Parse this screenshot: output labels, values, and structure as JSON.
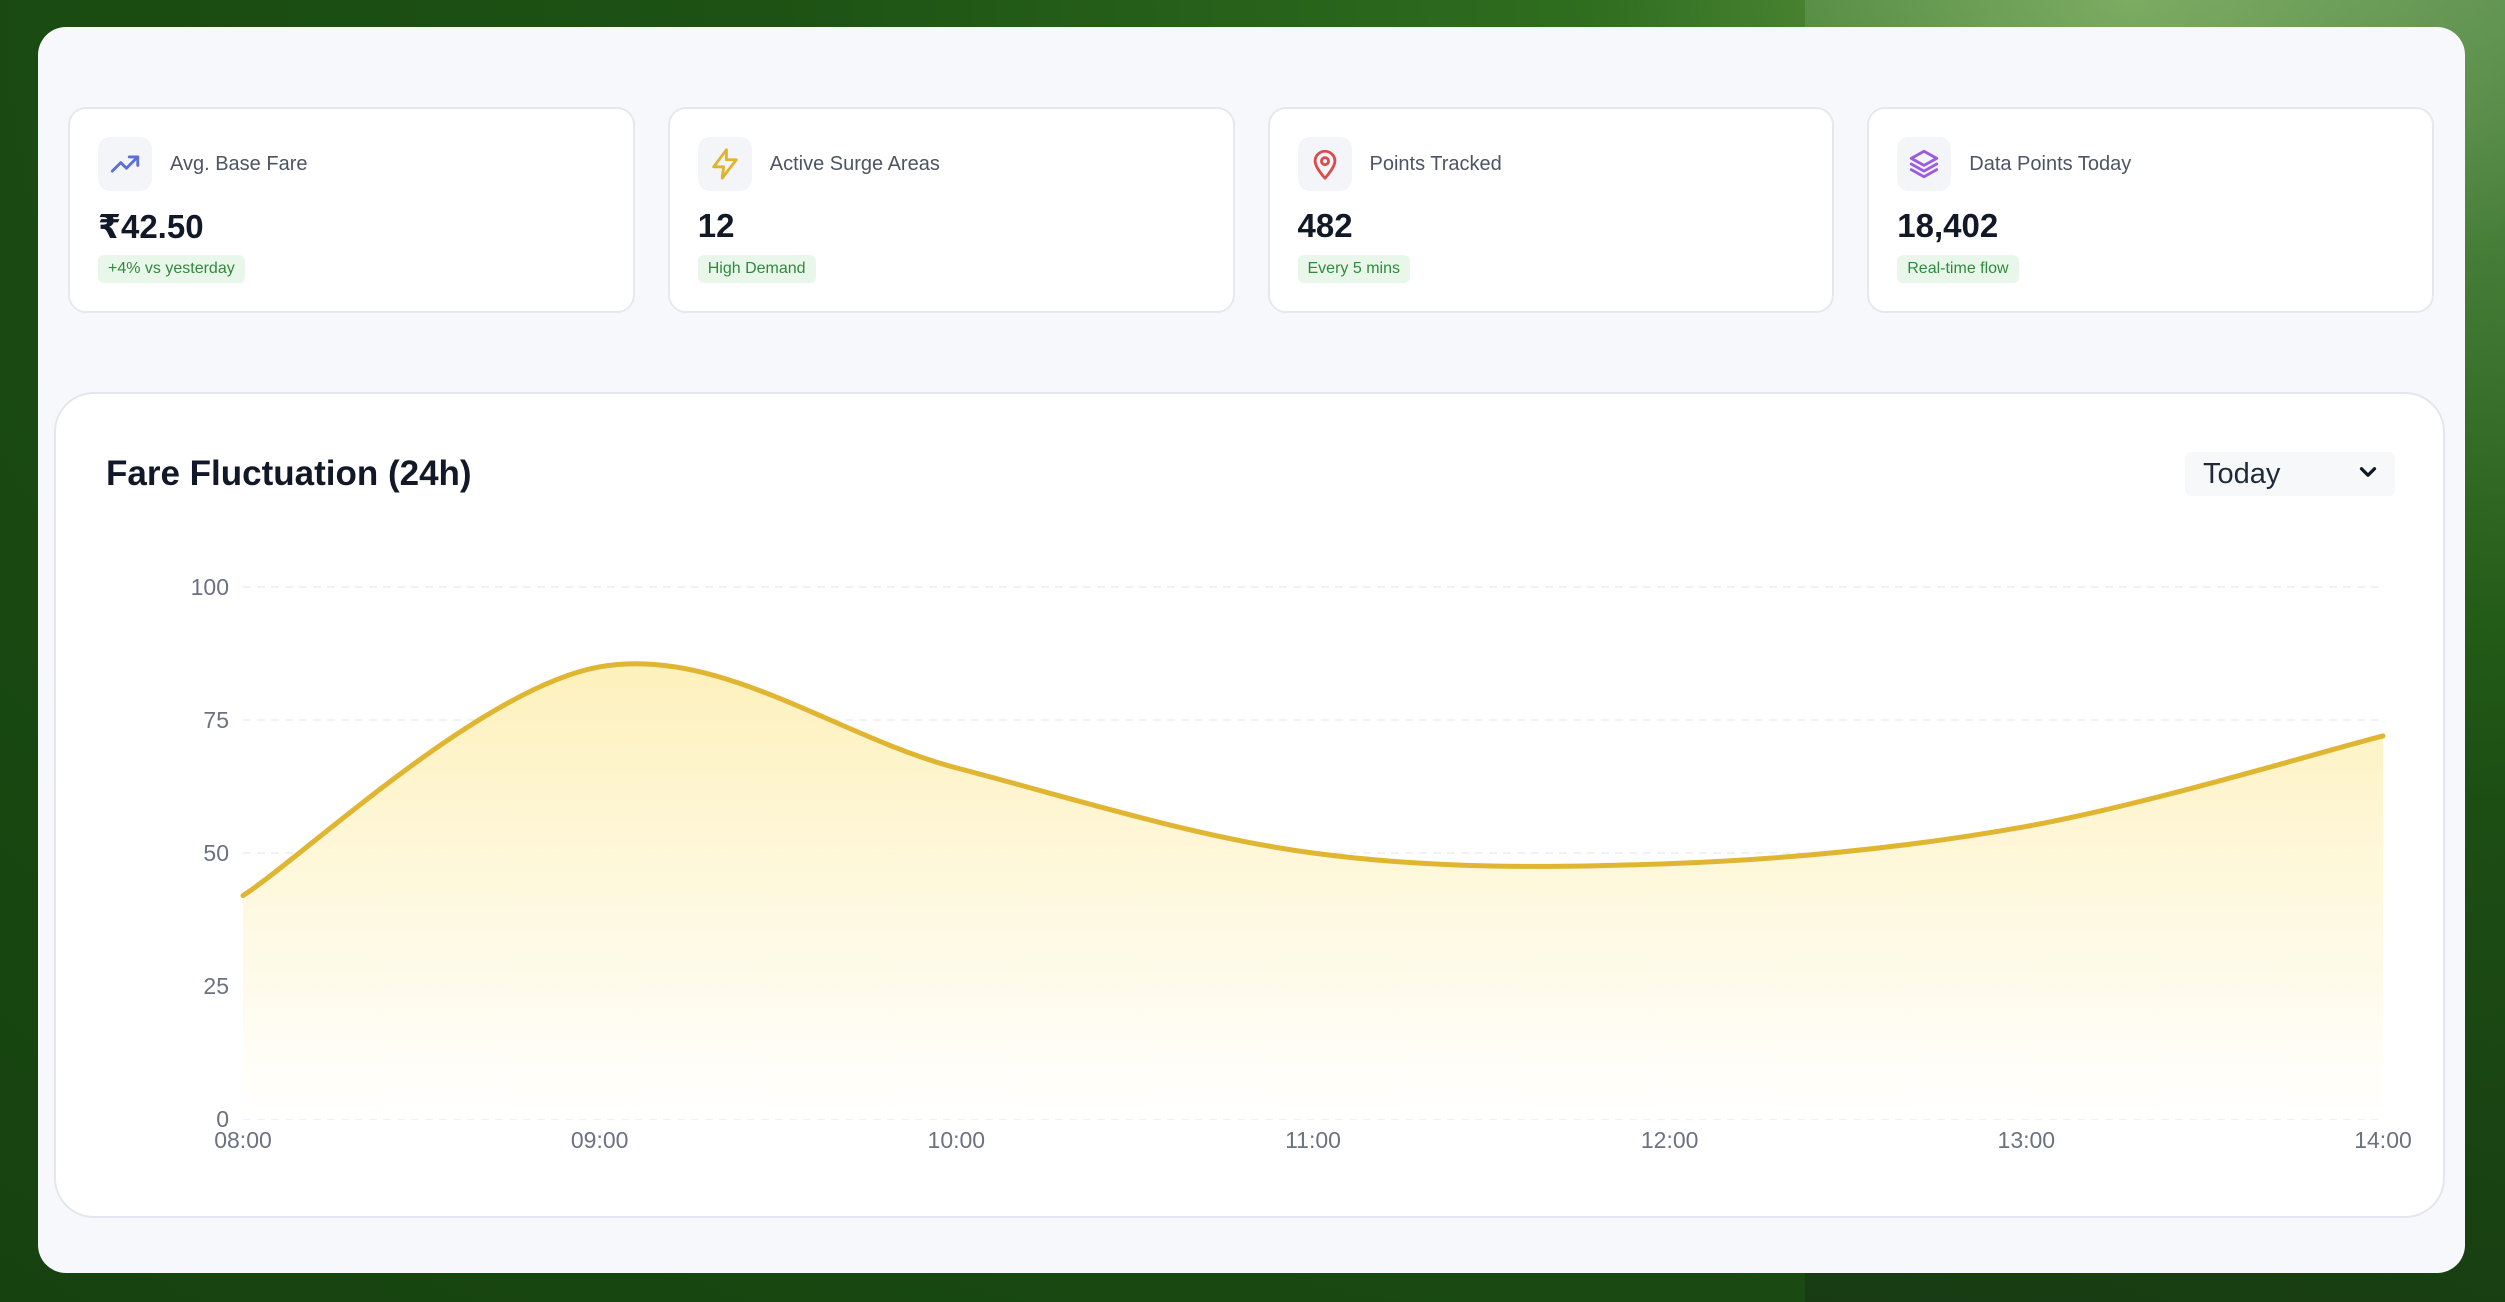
{
  "stats": [
    {
      "label": "Avg. Base Fare",
      "value": "₹42.50",
      "badge": "+4% vs yesterday",
      "icon": "trending-up-icon",
      "icon_color": "#5b6fd8"
    },
    {
      "label": "Active Surge Areas",
      "value": "12",
      "badge": "High Demand",
      "icon": "lightning-icon",
      "icon_color": "#e0b32a"
    },
    {
      "label": "Points Tracked",
      "value": "482",
      "badge": "Every 5 mins",
      "icon": "map-pin-icon",
      "icon_color": "#d94c4c"
    },
    {
      "label": "Data Points Today",
      "value": "18,402",
      "badge": "Real-time flow",
      "icon": "layers-icon",
      "icon_color": "#9b5ce0"
    }
  ],
  "chart_card": {
    "title": "Fare Fluctuation (24h)",
    "range_select": {
      "selected": "Today"
    }
  },
  "colors": {
    "line": "#e0b531",
    "fill_top": "#fdf0b8",
    "fill_bottom": "#ffffff",
    "badge_text": "#2f8a3c",
    "badge_bg": "#e9f7ea"
  },
  "chart_data": {
    "type": "area",
    "x": [
      "08:00",
      "09:00",
      "10:00",
      "11:00",
      "12:00",
      "13:00",
      "14:00"
    ],
    "series": [
      {
        "values": [
          42,
          85,
          66,
          50,
          48,
          55,
          72
        ]
      }
    ],
    "ylim": [
      0,
      100
    ],
    "yticks": [
      0,
      25,
      50,
      75,
      100
    ],
    "grid": true,
    "smooth": true
  }
}
